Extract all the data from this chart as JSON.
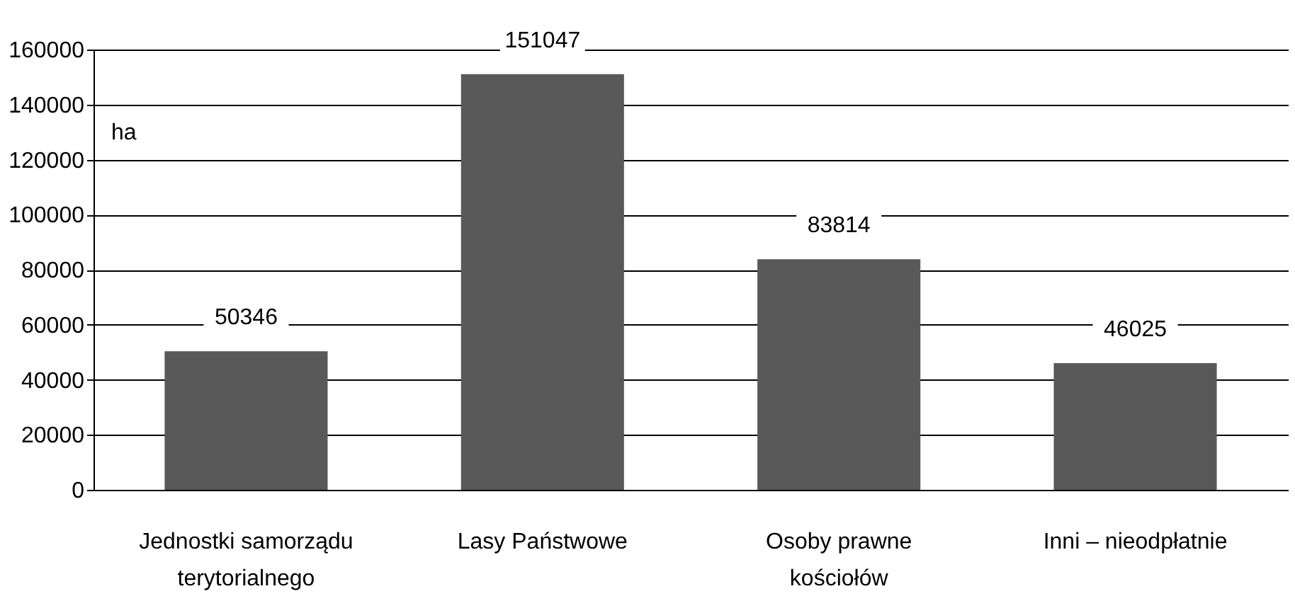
{
  "chart_data": {
    "type": "bar",
    "ylabel": "ha",
    "categories": [
      "Jednostki samorządu terytorialnego",
      "Lasy Państwowe",
      "Osoby prawne kościołów",
      "Inni – nieodpłatnie"
    ],
    "values": [
      50346,
      151047,
      83814,
      46025
    ],
    "color": "#595959",
    "ylim": [
      0,
      160000
    ],
    "yticks": [
      0,
      20000,
      40000,
      60000,
      80000,
      100000,
      120000,
      140000,
      160000
    ],
    "grid": "y",
    "data_labels": true
  }
}
